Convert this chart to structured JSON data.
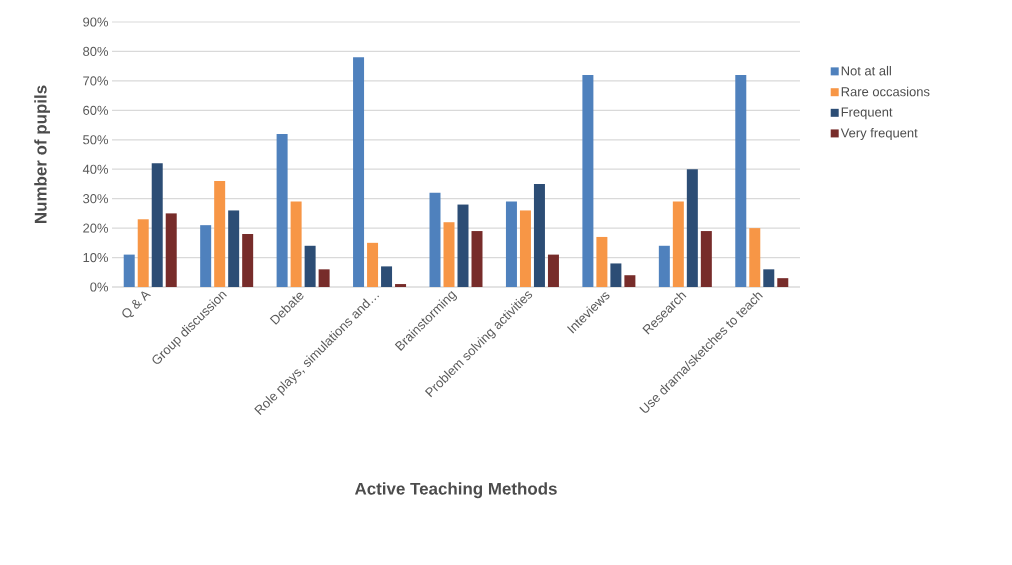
{
  "chart_data": {
    "type": "bar",
    "xlabel": "Active Teaching Methods",
    "ylabel": "Number of pupils",
    "categories": [
      "Q & A",
      "Group discussion",
      "Debate",
      "Role plays, simulations and…",
      "Brainstorming",
      "Problem solving activities",
      "Inteviews",
      "Research",
      "Use drama/sketches to teach"
    ],
    "series": [
      {
        "name": "Not at all",
        "color": "#4f81bd",
        "values": [
          11,
          21,
          52,
          78,
          32,
          29,
          72,
          14,
          72
        ]
      },
      {
        "name": "Rare occasions",
        "color": "#f79646",
        "values": [
          23,
          36,
          29,
          15,
          22,
          26,
          17,
          29,
          20
        ]
      },
      {
        "name": "Frequent",
        "color": "#2c4d75",
        "values": [
          42,
          26,
          14,
          7,
          28,
          35,
          8,
          40,
          6
        ]
      },
      {
        "name": "Very frequent",
        "color": "#772c2a",
        "values": [
          25,
          18,
          6,
          1,
          19,
          11,
          4,
          19,
          3
        ]
      }
    ],
    "ylim": [
      0,
      90
    ],
    "yticks": [
      {
        "value": 0,
        "label": "0%"
      },
      {
        "value": 10,
        "label": "10%"
      },
      {
        "value": 20,
        "label": "20%"
      },
      {
        "value": 30,
        "label": "30%"
      },
      {
        "value": 40,
        "label": "40%"
      },
      {
        "value": 50,
        "label": "50%"
      },
      {
        "value": 60,
        "label": "60%"
      },
      {
        "value": 70,
        "label": "70%"
      },
      {
        "value": 80,
        "label": "80%"
      },
      {
        "value": 90,
        "label": "90%"
      }
    ],
    "grid": "y",
    "legend": "right"
  }
}
